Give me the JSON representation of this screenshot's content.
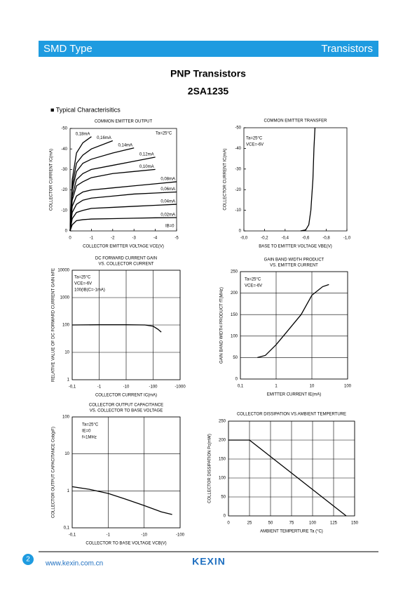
{
  "header": {
    "left": "SMD Type",
    "right": "Transistors"
  },
  "title": "PNP  Transistors",
  "part": "2SA1235",
  "section": "■  Typical  Characterisitics",
  "footer": {
    "page": "2",
    "url": "www.kexin.com.cn",
    "logo": "KEXIN"
  },
  "chart_data": [
    {
      "type": "line",
      "title": "COMMON EMITTER OUTPUT",
      "xlabel": "COLLECTOR EMITTER VOLTAGE VCE(V)",
      "ylabel": "COLLECTOR CURRENT IC(mA)",
      "xlim": [
        0,
        -5
      ],
      "xticks": [
        0,
        -1,
        -2,
        -3,
        -4,
        -5
      ],
      "ylim": [
        0,
        -50
      ],
      "yticks": [
        0,
        -10,
        -20,
        -30,
        -40,
        -50
      ],
      "grid": false,
      "annotations": [
        "Ta=25°C",
        "IB=0"
      ],
      "x": [
        0,
        -0.1,
        -0.3,
        -0.6,
        -1,
        -2,
        -3,
        -4,
        -5
      ],
      "series": [
        {
          "name": "0,18mA",
          "color": "#000000",
          "values": [
            0,
            -25,
            -38,
            -43,
            -46,
            null,
            null,
            null,
            null
          ]
        },
        {
          "name": "0,16mA",
          "color": "#000000",
          "values": [
            0,
            -22,
            -33,
            -37,
            -40,
            -44,
            null,
            null,
            null
          ]
        },
        {
          "name": "0,14mA",
          "color": "#000000",
          "values": [
            0,
            -20,
            -29,
            -33,
            -35,
            -38,
            -40.5,
            null,
            null
          ]
        },
        {
          "name": "0,12mA",
          "color": "#000000",
          "values": [
            0,
            -17,
            -25,
            -28,
            -30,
            -32,
            -34,
            -36,
            null
          ]
        },
        {
          "name": "0,10mA",
          "color": "#000000",
          "values": [
            0,
            -15,
            -22,
            -24,
            -26,
            -28,
            -29,
            -30,
            null
          ]
        },
        {
          "name": "0,08mA",
          "color": "#000000",
          "values": [
            0,
            -12,
            -17,
            -19,
            -20,
            -21,
            -22,
            -23,
            -24
          ]
        },
        {
          "name": "0,06mA",
          "color": "#000000",
          "values": [
            0,
            -9,
            -13,
            -15,
            -16,
            -17,
            -18,
            -18.5,
            -19
          ]
        },
        {
          "name": "0,04mA",
          "color": "#000000",
          "values": [
            0,
            -6,
            -9,
            -10,
            -11,
            -11.5,
            -12,
            -12.5,
            -13
          ]
        },
        {
          "name": "0,02mA",
          "color": "#000000",
          "values": [
            0,
            -3,
            -5,
            -5.5,
            -5.8,
            -6,
            -6.2,
            -6.4,
            -6.5
          ]
        }
      ]
    },
    {
      "type": "line",
      "title": "COMMON EMITTER TRANSFER",
      "xlabel": "BASE TO EMITTER VOLTAGE VBE(V)",
      "ylabel": "COLLECTOR CURRENT IC(mA)",
      "xlim": [
        0,
        -1.0
      ],
      "xticks": [
        {
          "value": 0,
          "label": "-0,0"
        },
        {
          "value": -0.2,
          "label": "-0,2"
        },
        {
          "value": -0.4,
          "label": "-0,4"
        },
        {
          "value": -0.6,
          "label": "-0,6"
        },
        {
          "value": -0.8,
          "label": "-0,8"
        },
        {
          "value": -1.0,
          "label": "-1,0"
        }
      ],
      "ylim": [
        0,
        -50
      ],
      "yticks": [
        0,
        -10,
        -20,
        -30,
        -40,
        -50
      ],
      "grid": false,
      "annotations": [
        "Ta=25°C",
        "VCE=-6V"
      ],
      "x": [
        -0.55,
        -0.6,
        -0.63,
        -0.65,
        -0.67,
        -0.68,
        -0.69
      ],
      "series": [
        {
          "color": "#000000",
          "values": [
            0,
            -0.5,
            -3,
            -10,
            -25,
            -40,
            -50
          ]
        }
      ]
    },
    {
      "type": "line",
      "title": "DC FORWARD CURRENT GAIN",
      "subtitle": "VS. COLLECTOR CURRENT",
      "xlabel": "COLLECTOR CURRENT IC(mA)",
      "ylabel": "RELATIVE VALUE OF DC FORWARD CURRENT GAIN hFE",
      "xlog": true,
      "ylog": true,
      "xlim": [
        -0.1,
        -1000
      ],
      "xticks": [
        {
          "value": -0.1,
          "label": "-0,1"
        },
        -1,
        -10,
        -100,
        -1000
      ],
      "ylim": [
        1,
        10000
      ],
      "yticks": [
        1,
        10,
        100,
        1000,
        10000
      ],
      "grid": true,
      "annotations": [
        "Ta=25°C",
        "VCE=-6V",
        "100(IB(C=-1mA)"
      ],
      "x": [
        -0.1,
        -1,
        -10,
        -50,
        -100,
        -150,
        -200
      ],
      "series": [
        {
          "color": "#000000",
          "values": [
            100,
            102,
            102,
            100,
            90,
            70,
            55
          ]
        }
      ]
    },
    {
      "type": "line",
      "title": "GAIN BAND WIDTH PRODUCT",
      "subtitle": "VS. EMITTER CURRENT",
      "xlabel": "EMITTER CURRENT IE(mA)",
      "ylabel": "GAIN BAND WIDTH PRODUCT fT(MHz)",
      "xlog": true,
      "xlim": [
        0.1,
        100
      ],
      "xticks": [
        {
          "value": 0.1,
          "label": "0,1"
        },
        1,
        10,
        100
      ],
      "ylim": [
        0,
        250
      ],
      "yticks": [
        0,
        50,
        100,
        150,
        200,
        250
      ],
      "grid": true,
      "annotations": [
        "Ta=25°C",
        "VCE=-6V"
      ],
      "x": [
        0.3,
        0.5,
        1,
        2,
        5,
        10,
        20,
        30
      ],
      "series": [
        {
          "color": "#000000",
          "values": [
            50,
            55,
            80,
            110,
            150,
            195,
            215,
            220
          ]
        }
      ]
    },
    {
      "type": "line",
      "title": "COLLECTOR OUTPUT CAPACITANCE",
      "subtitle": "VS. COLLECTOR TO BASE VOLTAGE",
      "xlabel": "COLLECTOR TO BASE VOLTAGE VCB(V)",
      "ylabel": "COLLECTOR OUTPUT CAPACITANCE Cob(pF)",
      "xlog": true,
      "ylog": true,
      "xlim": [
        -0.1,
        -100
      ],
      "xticks": [
        {
          "value": -0.1,
          "label": "-0,1"
        },
        -1,
        -10,
        -100
      ],
      "ylim": [
        0.1,
        100
      ],
      "yticks": [
        {
          "value": 0.1,
          "label": "0,1"
        },
        1,
        10,
        100
      ],
      "grid": true,
      "annotations": [
        "Ta=25°C",
        "IE=0",
        "f=1MHz"
      ],
      "x": [
        -0.1,
        -0.3,
        -1,
        -3,
        -10,
        -30,
        -60
      ],
      "series": [
        {
          "color": "#000000",
          "values": [
            1.3,
            1.1,
            0.85,
            0.6,
            0.4,
            0.27,
            0.23
          ]
        }
      ]
    },
    {
      "type": "line",
      "title": "COLLECTOR DISSIPATION VS.AMBIENT TEMPERTURE",
      "xlabel": "AMBIENT TEMPERTURE Ta (°C)",
      "ylabel": "COLLECTOR DISSIPATION Pc(mW)",
      "xlim": [
        0,
        150
      ],
      "xticks": [
        0,
        25,
        50,
        75,
        100,
        125,
        150
      ],
      "ylim": [
        0,
        250
      ],
      "yticks": [
        0,
        50,
        100,
        150,
        200,
        250
      ],
      "grid": true,
      "x": [
        0,
        25,
        140
      ],
      "series": [
        {
          "color": "#000000",
          "values": [
            200,
            200,
            0
          ]
        }
      ]
    }
  ]
}
